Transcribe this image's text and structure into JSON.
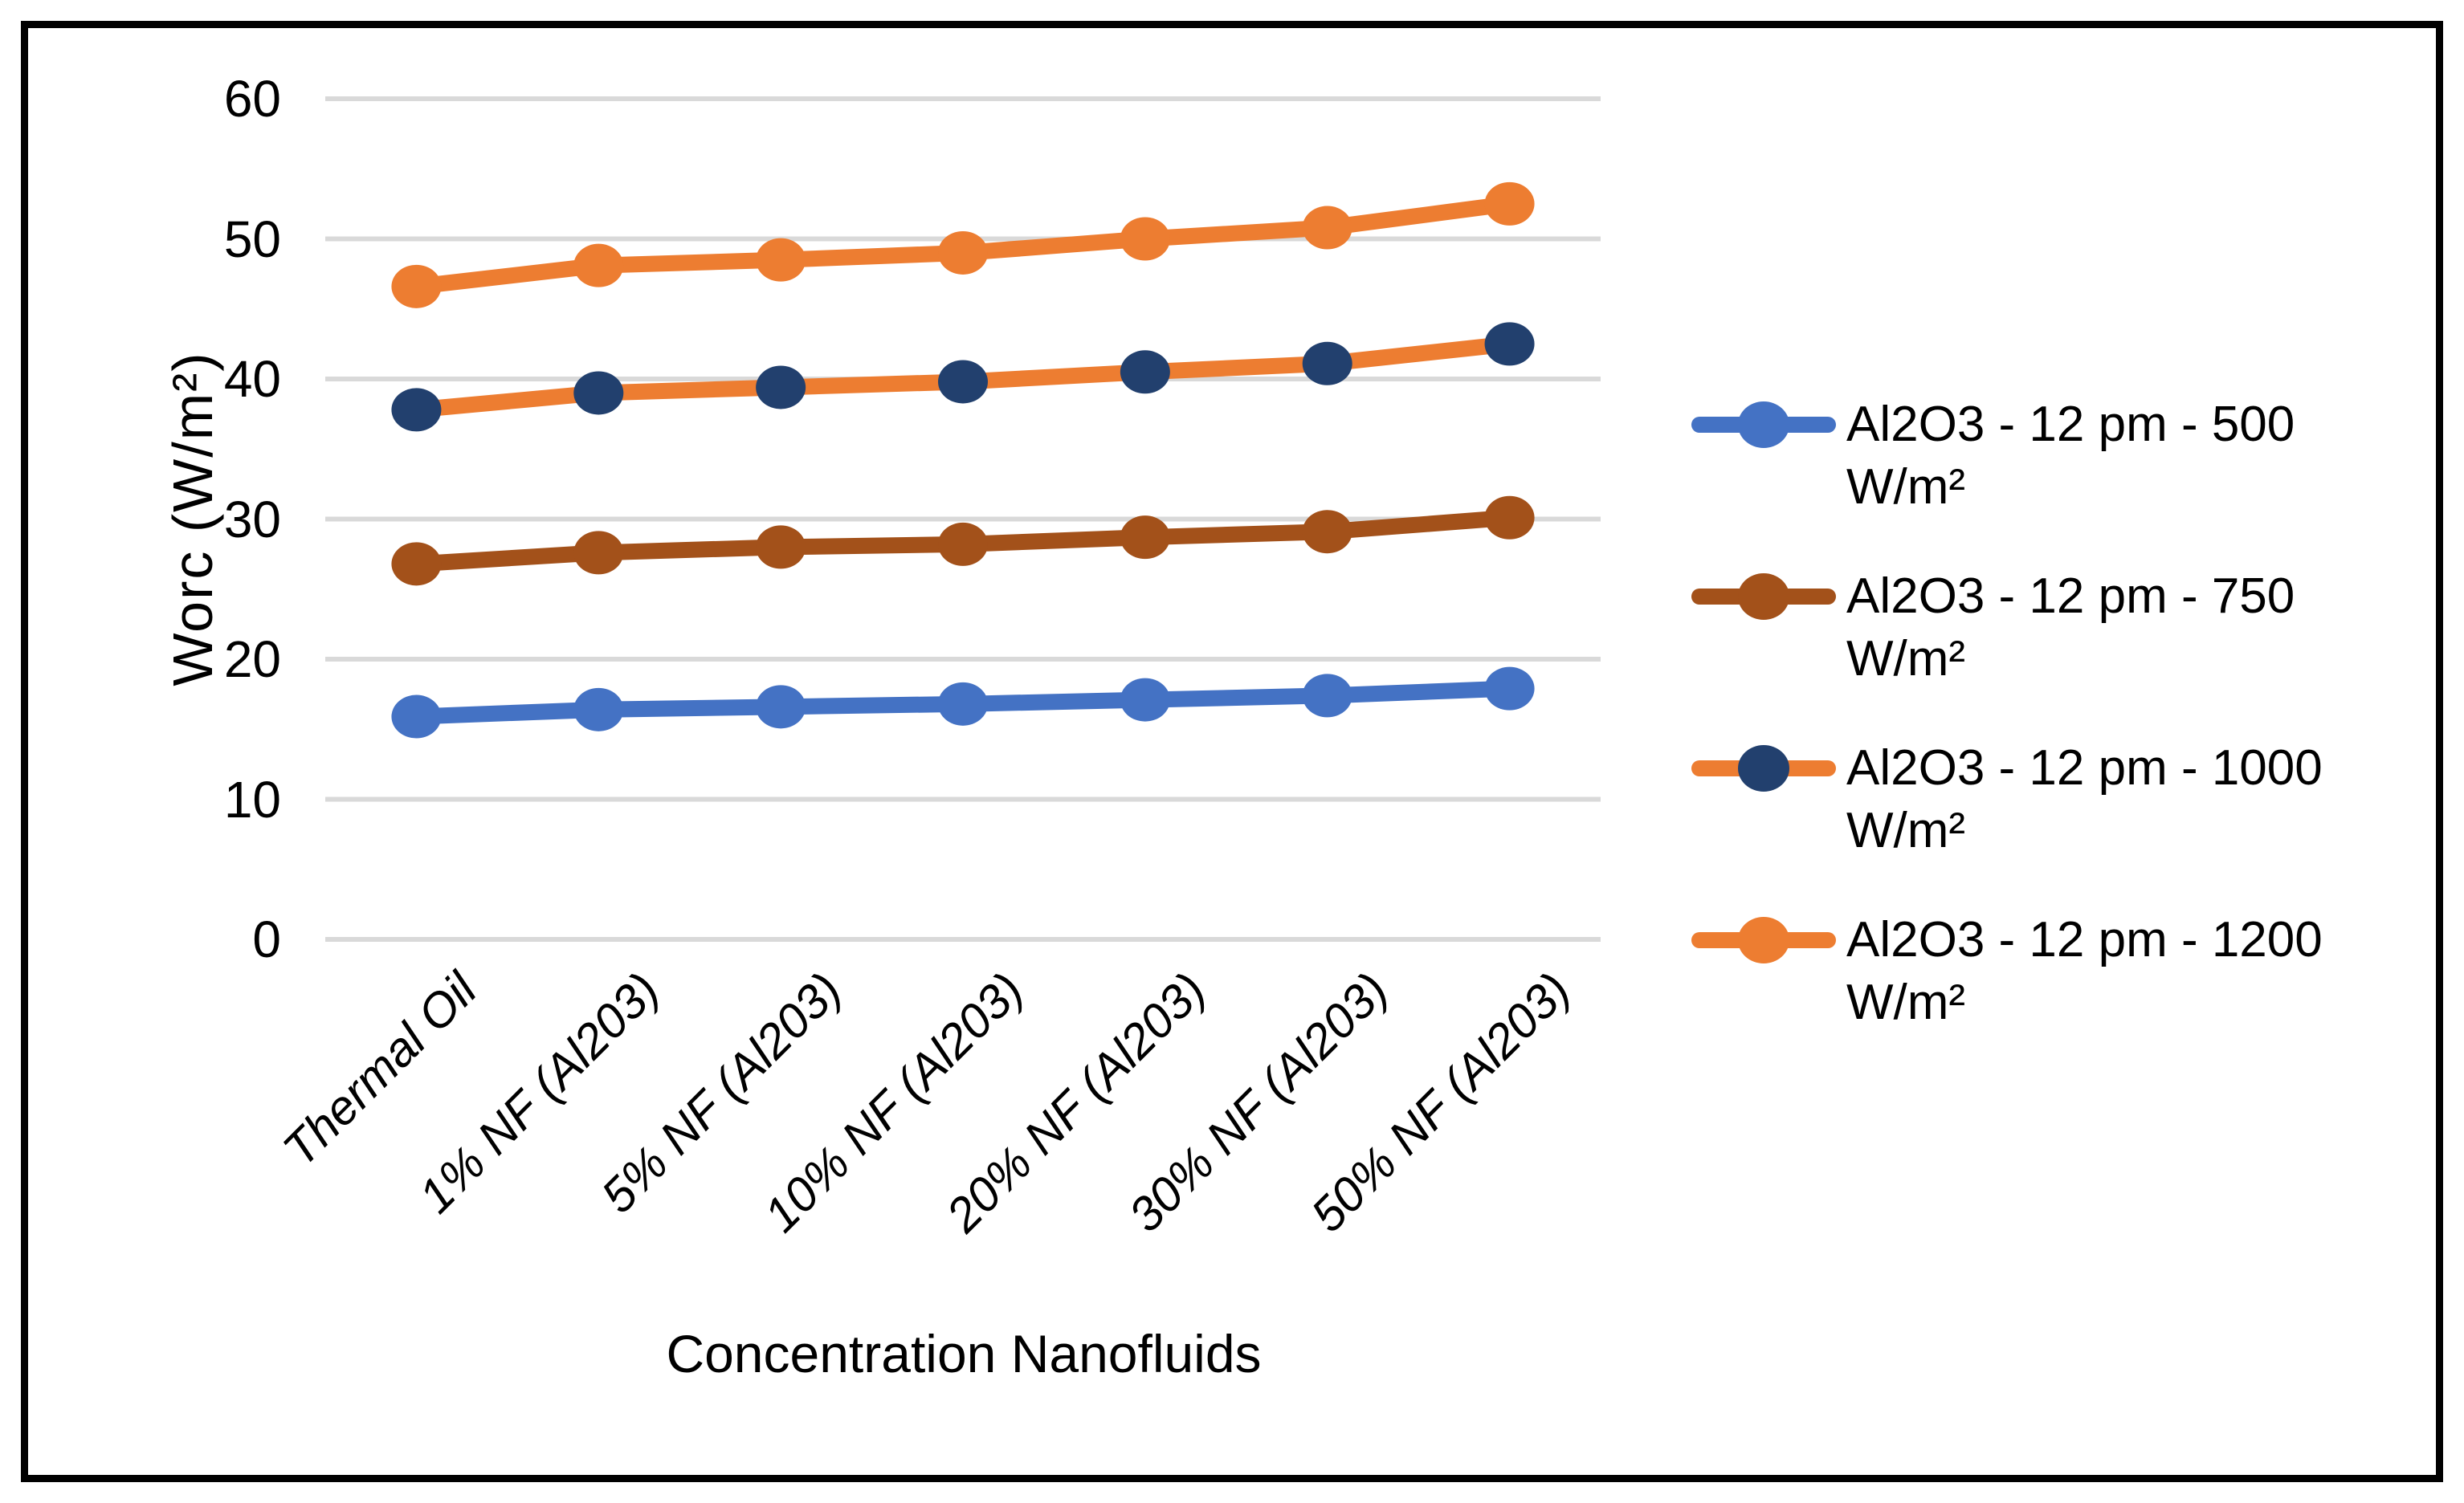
{
  "chart_data": {
    "type": "line",
    "title": "",
    "xlabel": "Concentration Nanofluids",
    "ylabel": "Worc (W/m²)",
    "ylim": [
      0,
      60
    ],
    "yticks": [
      0,
      10,
      20,
      30,
      40,
      50,
      60
    ],
    "grid": true,
    "gridline_color": "#D9D9D9",
    "legend_position": "right",
    "categories": [
      "Thermal Oil",
      "1% NF (Al203)",
      "5% NF (Al203)",
      "10% NF (Al203)",
      "20% NF (Al203)",
      "30% NF (Al203)",
      "50% NF (Al203)"
    ],
    "series": [
      {
        "name": "Al2O3 - 12 pm - 500",
        "unit": "W/m²",
        "values": [
          15.9,
          16.4,
          16.6,
          16.8,
          17.1,
          17.4,
          17.9
        ],
        "line_color": "#4472C4",
        "marker_color": "#4472C4"
      },
      {
        "name": "Al2O3 - 12 pm - 750",
        "unit": "W/m²",
        "values": [
          26.8,
          27.6,
          28.0,
          28.2,
          28.7,
          29.1,
          30.1
        ],
        "line_color": "#A3511A",
        "marker_color": "#A3511A"
      },
      {
        "name": "Al2O3 - 12 pm - 1000",
        "unit": "W/m²",
        "values": [
          37.8,
          39.0,
          39.4,
          39.8,
          40.5,
          41.1,
          42.5
        ],
        "line_color": "#ED7D31",
        "marker_color": "#22406E"
      },
      {
        "name": "Al2O3 - 12 pm - 1200",
        "unit": "W/m²",
        "values": [
          46.6,
          48.1,
          48.5,
          49.0,
          50.0,
          50.8,
          52.5
        ],
        "line_color": "#ED7D31",
        "marker_color": "#ED7D31"
      }
    ]
  }
}
